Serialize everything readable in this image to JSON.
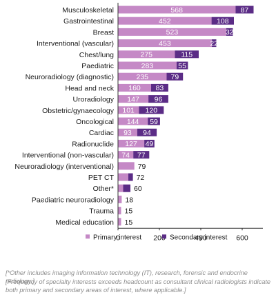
{
  "chart_data": {
    "type": "bar",
    "orientation": "horizontal",
    "stacked": true,
    "categories": [
      "Musculoskeletal",
      "Gastrointestinal",
      "Breast",
      "Interventional (vascular)",
      "Chest/lung",
      "Paediatric",
      "Neuroradiology (diagnostic)",
      "Head and neck",
      "Uroradiology",
      "Obstetric/gynaecology",
      "Oncological",
      "Cardiac",
      "Radionuclide",
      "Interventional (non-vascular)",
      "Neuroradiology (interventional)",
      "PET CT",
      "Other*",
      "Paediatric neuroradiology",
      "Trauma",
      "Medical education"
    ],
    "series": [
      {
        "name": "Primary interest",
        "color": "#c589c6",
        "values": [
          568,
          452,
          523,
          453,
          275,
          283,
          235,
          160,
          147,
          101,
          144,
          93,
          127,
          74,
          79,
          50,
          25,
          18,
          15,
          15
        ],
        "label_values": [
          "568",
          "452",
          "523",
          "453",
          "275",
          "283",
          "235",
          "160",
          "147",
          "101",
          "144",
          "93",
          "127",
          "74",
          "",
          "",
          "",
          "",
          "",
          ""
        ]
      },
      {
        "name": "Secondary interest",
        "color": "#5b2c86",
        "values": [
          87,
          108,
          32,
          22,
          115,
          55,
          79,
          83,
          96,
          120,
          59,
          94,
          49,
          77,
          0,
          22,
          35,
          0,
          0,
          0
        ],
        "label_values": [
          "87",
          "108",
          "32",
          "22",
          "115",
          "55",
          "79",
          "83",
          "96",
          "120",
          "59",
          "94",
          "49",
          "77",
          "",
          "",
          "",
          "",
          "",
          ""
        ]
      }
    ],
    "total_labels": [
      "",
      "",
      "",
      "",
      "",
      "",
      "",
      "",
      "",
      "",
      "",
      "",
      "",
      "",
      "79",
      "72",
      "60",
      "18",
      "15",
      "15"
    ],
    "xlim": [
      0,
      700
    ],
    "xticks": [
      0,
      200,
      400,
      600
    ],
    "xtick_labels": [
      "0",
      "200",
      "400",
      "600"
    ],
    "grid": false,
    "legend_position": "bottom"
  },
  "footnotes": [
    "[*Other includes imaging information technology (IT), research, forensic and endocrine radiology.]",
    "[Frequency of specialty interests exceeds headcount as consultant clinical radiologists indicate both primary and secondary areas of interest, where applicable.]"
  ]
}
